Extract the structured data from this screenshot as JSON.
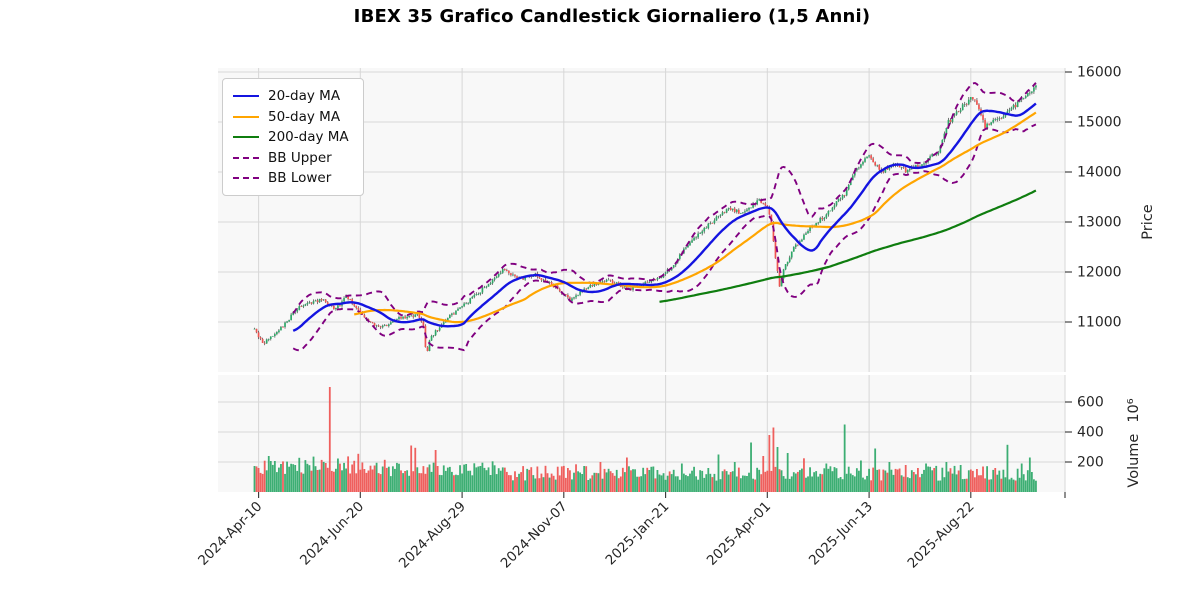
{
  "title": "IBEX 35 Grafico Candlestick Giornaliero (1,5 Anni)",
  "legend": {
    "items": [
      {
        "label": "20-day MA",
        "color": "#1414e0",
        "dash": false
      },
      {
        "label": "50-day MA",
        "color": "#ffa500",
        "dash": false
      },
      {
        "label": "200-day MA",
        "color": "#0f7d0f",
        "dash": false
      },
      {
        "label": "BB Upper",
        "color": "#800080",
        "dash": true
      },
      {
        "label": "BB Lower",
        "color": "#800080",
        "dash": true
      }
    ]
  },
  "axes": {
    "price_label": "Price",
    "volume_label": "Volume",
    "volume_multiplier": "10⁶",
    "price_ticks": [
      11000,
      12000,
      13000,
      14000,
      15000,
      16000
    ],
    "volume_ticks": [
      200,
      400,
      600
    ],
    "date_ticks": [
      {
        "i": 2,
        "label": "2024-Apr-10"
      },
      {
        "i": 52,
        "label": "2024-Jun-20"
      },
      {
        "i": 102,
        "label": "2024-Aug-29"
      },
      {
        "i": 152,
        "label": "2024-Nov-07"
      },
      {
        "i": 202,
        "label": "2025-Jan-21"
      },
      {
        "i": 252,
        "label": "2025-Apr-01"
      },
      {
        "i": 302,
        "label": "2025-Jun-13"
      },
      {
        "i": 352,
        "label": "2025-Aug-22"
      }
    ]
  },
  "chart_data": {
    "type": "candlestick",
    "symbol": "IBEX 35",
    "interval": "daily",
    "span": "1.5 years",
    "num_candles": 385,
    "price_ylim": [
      10000,
      16080
    ],
    "volume_ylim": [
      0,
      780
    ],
    "grid": true,
    "legend_position": "upper left",
    "close_anchors": [
      [
        0,
        10880
      ],
      [
        4,
        10560
      ],
      [
        12,
        10820
      ],
      [
        22,
        11320
      ],
      [
        33,
        11450
      ],
      [
        40,
        11250
      ],
      [
        45,
        11520
      ],
      [
        55,
        11040
      ],
      [
        62,
        10880
      ],
      [
        72,
        11090
      ],
      [
        80,
        11140
      ],
      [
        83,
        10900
      ],
      [
        84,
        10500
      ],
      [
        85,
        10420
      ],
      [
        86,
        10650
      ],
      [
        94,
        11060
      ],
      [
        102,
        11300
      ],
      [
        110,
        11580
      ],
      [
        122,
        12040
      ],
      [
        130,
        11860
      ],
      [
        138,
        11940
      ],
      [
        148,
        11700
      ],
      [
        155,
        11440
      ],
      [
        164,
        11700
      ],
      [
        174,
        11840
      ],
      [
        184,
        11650
      ],
      [
        194,
        11820
      ],
      [
        200,
        11900
      ],
      [
        206,
        12150
      ],
      [
        214,
        12600
      ],
      [
        224,
        12980
      ],
      [
        234,
        13280
      ],
      [
        240,
        13160
      ],
      [
        248,
        13430
      ],
      [
        252,
        13290
      ],
      [
        254,
        12950
      ],
      [
        256,
        12300
      ],
      [
        258,
        11740
      ],
      [
        261,
        12150
      ],
      [
        265,
        12480
      ],
      [
        272,
        12820
      ],
      [
        280,
        13120
      ],
      [
        290,
        13560
      ],
      [
        296,
        14080
      ],
      [
        302,
        14320
      ],
      [
        308,
        14000
      ],
      [
        314,
        14180
      ],
      [
        320,
        14020
      ],
      [
        328,
        14140
      ],
      [
        336,
        14420
      ],
      [
        341,
        15000
      ],
      [
        346,
        15230
      ],
      [
        352,
        15470
      ],
      [
        355,
        15380
      ],
      [
        359,
        14900
      ],
      [
        364,
        15060
      ],
      [
        368,
        15100
      ],
      [
        372,
        15260
      ],
      [
        376,
        15420
      ],
      [
        380,
        15580
      ],
      [
        384,
        15720
      ]
    ],
    "overlays": [
      {
        "name": "20-day MA",
        "window": 20,
        "color": "#1414e0",
        "style": "solid"
      },
      {
        "name": "50-day MA",
        "window": 50,
        "color": "#ffa500",
        "style": "solid"
      },
      {
        "name": "200-day MA",
        "window": 200,
        "color": "#0f7d0f",
        "style": "solid"
      },
      {
        "name": "BB Upper",
        "window": 20,
        "k": 2,
        "color": "#800080",
        "style": "dashed"
      },
      {
        "name": "BB Lower",
        "window": 20,
        "k": -2,
        "color": "#800080",
        "style": "dashed"
      }
    ],
    "volume_spikes": [
      [
        37,
        700,
        "d"
      ],
      [
        51,
        255,
        "d"
      ],
      [
        64,
        215,
        "d"
      ],
      [
        77,
        310,
        "d"
      ],
      [
        79,
        295,
        "d"
      ],
      [
        89,
        280,
        "d"
      ],
      [
        117,
        205,
        "u"
      ],
      [
        143,
        175,
        "d"
      ],
      [
        158,
        185,
        "d"
      ],
      [
        170,
        200,
        "d"
      ],
      [
        183,
        230,
        "d"
      ],
      [
        196,
        170,
        "u"
      ],
      [
        210,
        190,
        "u"
      ],
      [
        228,
        250,
        "u"
      ],
      [
        236,
        200,
        "u"
      ],
      [
        244,
        330,
        "u"
      ],
      [
        250,
        240,
        "d"
      ],
      [
        253,
        380,
        "d"
      ],
      [
        255,
        430,
        "d"
      ],
      [
        257,
        300,
        "u"
      ],
      [
        262,
        260,
        "u"
      ],
      [
        270,
        225,
        "d"
      ],
      [
        281,
        190,
        "u"
      ],
      [
        290,
        450,
        "u"
      ],
      [
        298,
        210,
        "u"
      ],
      [
        305,
        290,
        "u"
      ],
      [
        312,
        200,
        "u"
      ],
      [
        320,
        180,
        "d"
      ],
      [
        330,
        190,
        "u"
      ],
      [
        340,
        200,
        "u"
      ],
      [
        347,
        180,
        "u"
      ],
      [
        352,
        150,
        "d"
      ],
      [
        358,
        170,
        "d"
      ],
      [
        364,
        160,
        "d"
      ],
      [
        370,
        315,
        "u"
      ],
      [
        377,
        190,
        "u"
      ],
      [
        381,
        230,
        "u"
      ]
    ],
    "volume_base_early": [
      120,
      240
    ],
    "volume_base_mid": [
      100,
      200
    ],
    "volume_base_late": [
      75,
      175
    ],
    "colors": {
      "up": "#2da868",
      "down": "#ef5350",
      "wick": "#3c3c3c",
      "plot_bg": "#f8f8f8",
      "grid": "#d7d7d7",
      "tick": "#333333",
      "tick_label": "#262626"
    }
  }
}
